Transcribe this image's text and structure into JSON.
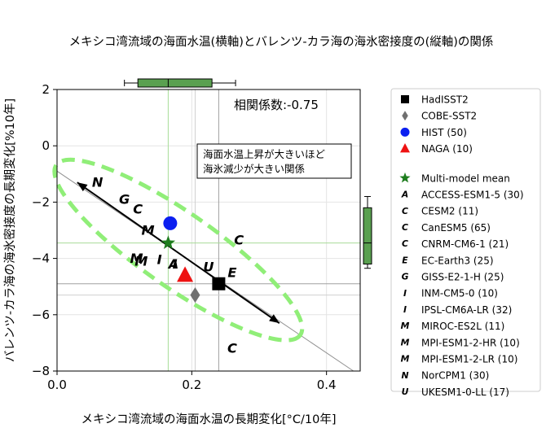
{
  "chart_data": {
    "type": "scatter",
    "title": "メキシコ湾流域の海面水温(横軸)とバレンツ-カラ海の海氷密接度の(縦軸)の関係",
    "xlabel": "メキシコ湾流域の海面水温の長期変化[°C/10年]",
    "ylabel": "バレンツ-カラ海の海氷密接度の長期変化[%10年]",
    "xlim": [
      0.0,
      0.45
    ],
    "ylim": [
      -8,
      2
    ],
    "xticks": [
      "0.0",
      "0.2",
      "0.4"
    ],
    "yticks": [
      "−8",
      "−6",
      "−4",
      "−2",
      "0",
      "2"
    ],
    "grid": true,
    "legend_position": "right-outside",
    "correlation_label": "相関係数:-0.75",
    "annotation": [
      "海面水温上昇が大きいほど",
      "海氷減少が大きい関係"
    ],
    "regression_line": {
      "x": [
        0.0,
        0.44
      ],
      "y": [
        -0.9,
        -8.0
      ],
      "color": "#909090"
    },
    "arrow": {
      "from": [
        0.03,
        -1.3
      ],
      "to": [
        0.33,
        -6.3
      ],
      "color": "#000000"
    },
    "ellipse": {
      "center": [
        0.18,
        -3.7
      ],
      "semi_axis_long": 0.23,
      "semi_axis_short": 2.4,
      "color": "#90ee78"
    },
    "obs_lines": [
      {
        "axis": "x",
        "value": 0.24,
        "color": "#a0a0a0"
      },
      {
        "axis": "x",
        "value": 0.205,
        "color": "#d0d0d0"
      },
      {
        "axis": "y",
        "value": -4.9,
        "color": "#a0a0a0"
      },
      {
        "axis": "y",
        "value": -5.3,
        "color": "#d0d0d0"
      }
    ],
    "mmm_lines": {
      "x": 0.165,
      "y": -3.45,
      "color": "#a8dc98"
    },
    "boxplot_x": {
      "whisker_low": 0.1,
      "q1": 0.12,
      "median": 0.165,
      "q3": 0.23,
      "whisker_high": 0.265,
      "color": "#5aa050"
    },
    "boxplot_y": {
      "whisker_low": -4.35,
      "q1": -4.2,
      "median": -3.45,
      "q3": -2.2,
      "whisker_high": -1.8,
      "color": "#5aa050"
    },
    "series": [
      {
        "name": "HadISST2",
        "marker": "square",
        "color": "#000000",
        "points": [
          [
            0.24,
            -4.9
          ]
        ]
      },
      {
        "name": "COBE-SST2",
        "marker": "diamond",
        "color": "#707070",
        "points": [
          [
            0.205,
            -5.3
          ]
        ]
      },
      {
        "name": "HIST (50)",
        "marker": "circle",
        "color": "#0b1ff0",
        "points": [
          [
            0.168,
            -2.75
          ]
        ]
      },
      {
        "name": "NAGA (10)",
        "marker": "triangle",
        "color": "#ee1212",
        "points": [
          [
            0.19,
            -4.6
          ]
        ]
      },
      {
        "name": "Multi-model mean",
        "marker": "star",
        "color": "#1e7d1e",
        "points": [
          [
            0.165,
            -3.45
          ]
        ]
      },
      {
        "name": "ACCESS-ESM1-5 (30)",
        "marker": "A",
        "color": "#1a5fa8",
        "points": [
          [
            0.173,
            -4.2
          ]
        ]
      },
      {
        "name": "CESM2 (11)",
        "marker": "C",
        "color": "#a9c8ea",
        "points": [
          [
            0.27,
            -3.35
          ]
        ]
      },
      {
        "name": "CanESM5 (65)",
        "marker": "C",
        "color": "#f7b77a",
        "points": [
          [
            0.26,
            -7.2
          ]
        ]
      },
      {
        "name": "CNRM-CM6-1 (21)",
        "marker": "C",
        "color": "#22951e",
        "points": [
          [
            0.12,
            -2.25
          ]
        ]
      },
      {
        "name": "EC-Earth3 (25)",
        "marker": "E",
        "color": "#d42a2a",
        "points": [
          [
            0.26,
            -4.5
          ]
        ]
      },
      {
        "name": "GISS-E2-1-H (25)",
        "marker": "G",
        "color": "#f0a3a3",
        "points": [
          [
            0.1,
            -1.9
          ]
        ]
      },
      {
        "name": "INM-CM5-0 (10)",
        "marker": "I",
        "color": "#e2b7f1",
        "points": [
          [
            0.152,
            -4.05
          ]
        ]
      },
      {
        "name": "IPSL-CM6A-LR (32)",
        "marker": "I",
        "color": "#8a3c3c",
        "points": [
          [
            0.175,
            -4.2
          ]
        ]
      },
      {
        "name": "MIROC-ES2L (11)",
        "marker": "M",
        "color": "#e05bc0",
        "points": [
          [
            0.135,
            -3.0
          ]
        ]
      },
      {
        "name": "MPI-ESM1-2-HR (10)",
        "marker": "M",
        "color": "#f3b1d4",
        "points": [
          [
            0.118,
            -4.0
          ]
        ]
      },
      {
        "name": "MPI-ESM1-2-LR (10)",
        "marker": "M",
        "color": "#c4c4c4",
        "points": [
          [
            0.125,
            -4.1
          ]
        ]
      },
      {
        "name": "NorCPM1 (30)",
        "marker": "N",
        "color": "#c8c82a",
        "points": [
          [
            0.06,
            -1.3
          ]
        ]
      },
      {
        "name": "UKESM1-0-LL (17)",
        "marker": "U",
        "color": "#1cc0d2",
        "points": [
          [
            0.225,
            -4.3
          ]
        ]
      }
    ]
  }
}
